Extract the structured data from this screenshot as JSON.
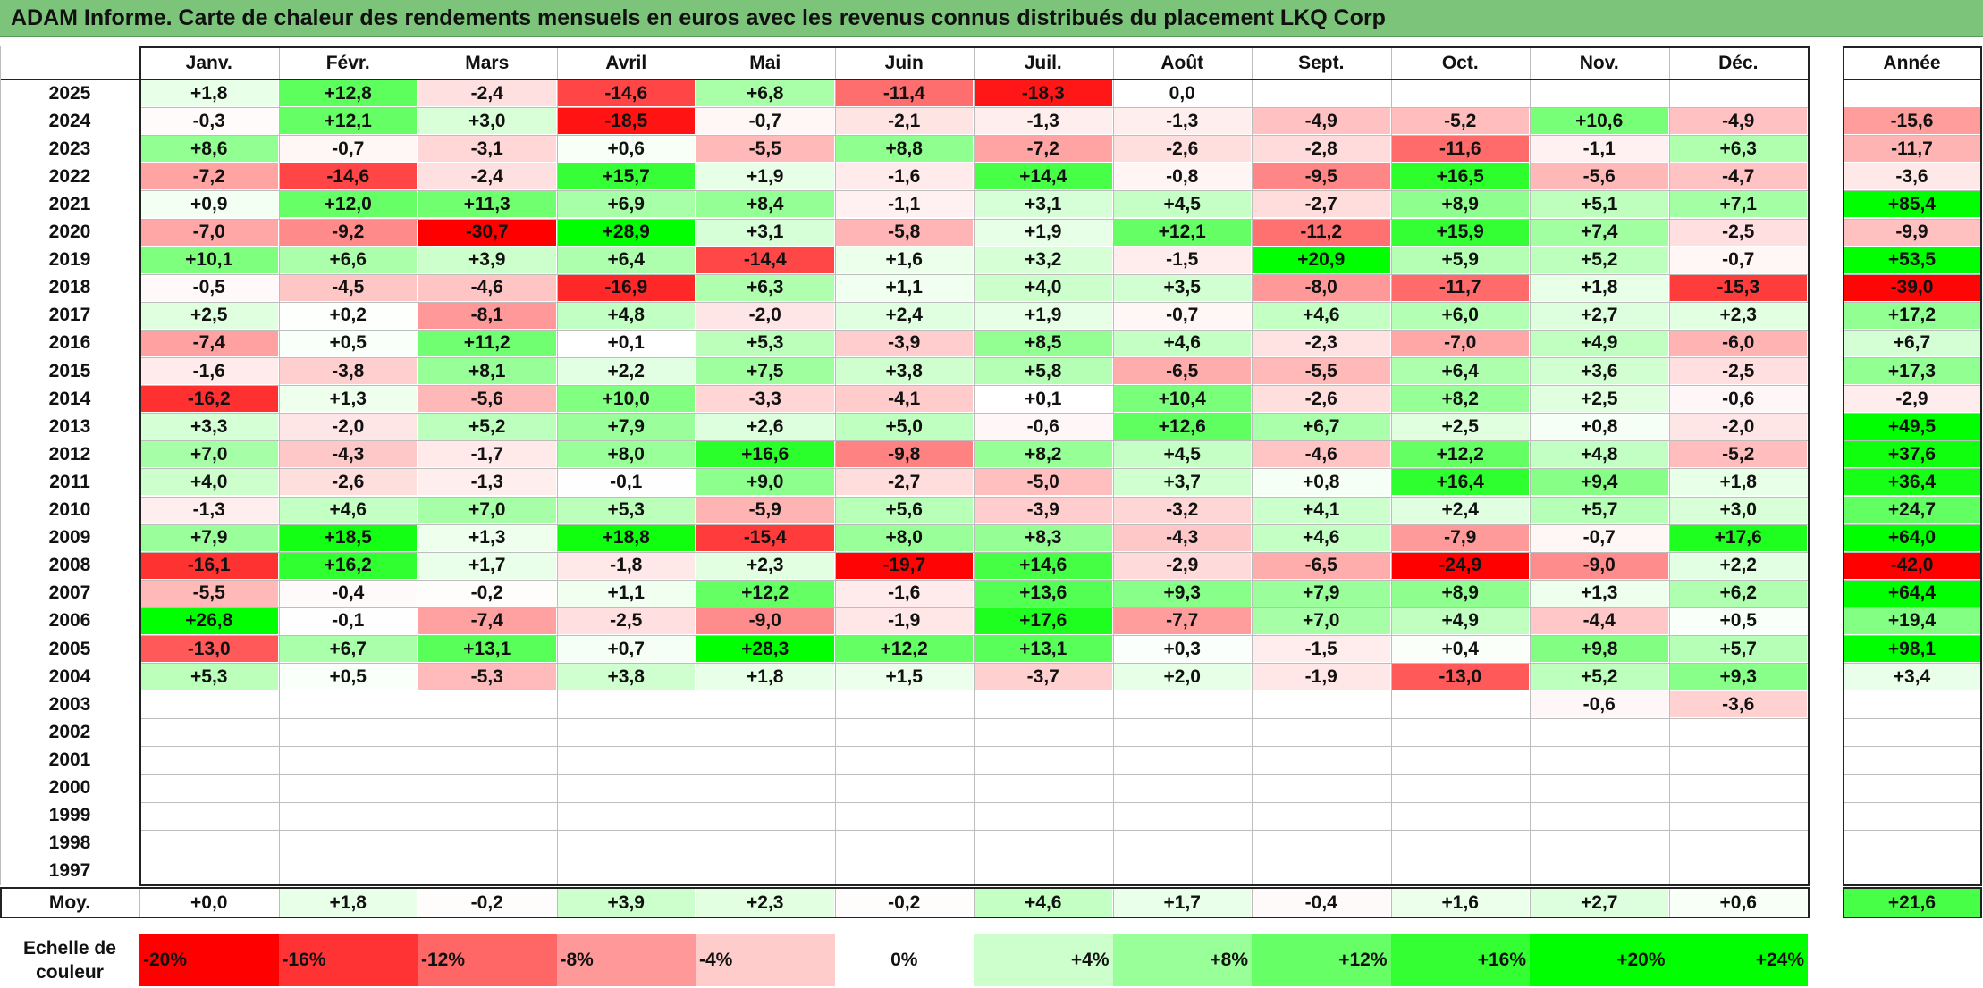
{
  "title": "ADAM Informe. Carte de chaleur des rendements mensuels en euros avec les revenus connus distribués du placement LKQ Corp",
  "chart_data": {
    "type": "heatmap",
    "title": "ADAM Informe. Carte de chaleur des rendements mensuels en euros avec les revenus connus distribués du placement LKQ Corp",
    "months": [
      "Janv.",
      "Févr.",
      "Mars",
      "Avril",
      "Mai",
      "Juin",
      "Juil.",
      "Août",
      "Sept.",
      "Oct.",
      "Nov.",
      "Déc."
    ],
    "year_header": "Année",
    "years": [
      "2025",
      "2024",
      "2023",
      "2022",
      "2021",
      "2020",
      "2019",
      "2018",
      "2017",
      "2016",
      "2015",
      "2014",
      "2013",
      "2012",
      "2011",
      "2010",
      "2009",
      "2008",
      "2007",
      "2006",
      "2005",
      "2004",
      "2003",
      "2002",
      "2001",
      "2000",
      "1999",
      "1998",
      "1997"
    ],
    "values": [
      [
        "+1,8",
        "+12,8",
        "-2,4",
        "-14,6",
        "+6,8",
        "-11,4",
        "-18,3",
        "0,0",
        "",
        "",
        "",
        ""
      ],
      [
        "-0,3",
        "+12,1",
        "+3,0",
        "-18,5",
        "-0,7",
        "-2,1",
        "-1,3",
        "-1,3",
        "-4,9",
        "-5,2",
        "+10,6",
        "-4,9"
      ],
      [
        "+8,6",
        "-0,7",
        "-3,1",
        "+0,6",
        "-5,5",
        "+8,8",
        "-7,2",
        "-2,6",
        "-2,8",
        "-11,6",
        "-1,1",
        "+6,3"
      ],
      [
        "-7,2",
        "-14,6",
        "-2,4",
        "+15,7",
        "+1,9",
        "-1,6",
        "+14,4",
        "-0,8",
        "-9,5",
        "+16,5",
        "-5,6",
        "-4,7"
      ],
      [
        "+0,9",
        "+12,0",
        "+11,3",
        "+6,9",
        "+8,4",
        "-1,1",
        "+3,1",
        "+4,5",
        "-2,7",
        "+8,9",
        "+5,1",
        "+7,1"
      ],
      [
        "-7,0",
        "-9,2",
        "-30,7",
        "+28,9",
        "+3,1",
        "-5,8",
        "+1,9",
        "+12,1",
        "-11,2",
        "+15,9",
        "+7,4",
        "-2,5"
      ],
      [
        "+10,1",
        "+6,6",
        "+3,9",
        "+6,4",
        "-14,4",
        "+1,6",
        "+3,2",
        "-1,5",
        "+20,9",
        "+5,9",
        "+5,2",
        "-0,7"
      ],
      [
        "-0,5",
        "-4,5",
        "-4,6",
        "-16,9",
        "+6,3",
        "+1,1",
        "+4,0",
        "+3,5",
        "-8,0",
        "-11,7",
        "+1,8",
        "-15,3"
      ],
      [
        "+2,5",
        "+0,2",
        "-8,1",
        "+4,8",
        "-2,0",
        "+2,4",
        "+1,9",
        "-0,7",
        "+4,6",
        "+6,0",
        "+2,7",
        "+2,3"
      ],
      [
        "-7,4",
        "+0,5",
        "+11,2",
        "+0,1",
        "+5,3",
        "-3,9",
        "+8,5",
        "+4,6",
        "-2,3",
        "-7,0",
        "+4,9",
        "-6,0"
      ],
      [
        "-1,6",
        "-3,8",
        "+8,1",
        "+2,2",
        "+7,5",
        "+3,8",
        "+5,8",
        "-6,5",
        "-5,5",
        "+6,4",
        "+3,6",
        "-2,5"
      ],
      [
        "-16,2",
        "+1,3",
        "-5,6",
        "+10,0",
        "-3,3",
        "-4,1",
        "+0,1",
        "+10,4",
        "-2,6",
        "+8,2",
        "+2,5",
        "-0,6"
      ],
      [
        "+3,3",
        "-2,0",
        "+5,2",
        "+7,9",
        "+2,6",
        "+5,0",
        "-0,6",
        "+12,6",
        "+6,7",
        "+2,5",
        "+0,8",
        "-2,0"
      ],
      [
        "+7,0",
        "-4,3",
        "-1,7",
        "+8,0",
        "+16,6",
        "-9,8",
        "+8,2",
        "+4,5",
        "-4,6",
        "+12,2",
        "+4,8",
        "-5,2"
      ],
      [
        "+4,0",
        "-2,6",
        "-1,3",
        "-0,1",
        "+9,0",
        "-2,7",
        "-5,0",
        "+3,7",
        "+0,8",
        "+16,4",
        "+9,4",
        "+1,8"
      ],
      [
        "-1,3",
        "+4,6",
        "+7,0",
        "+5,3",
        "-5,9",
        "+5,6",
        "-3,9",
        "-3,2",
        "+4,1",
        "+2,4",
        "+5,7",
        "+3,0"
      ],
      [
        "+7,9",
        "+18,5",
        "+1,3",
        "+18,8",
        "-15,4",
        "+8,0",
        "+8,3",
        "-4,3",
        "+4,6",
        "-7,9",
        "-0,7",
        "+17,6"
      ],
      [
        "-16,1",
        "+16,2",
        "+1,7",
        "-1,8",
        "+2,3",
        "-19,7",
        "+14,6",
        "-2,9",
        "-6,5",
        "-24,9",
        "-9,0",
        "+2,2"
      ],
      [
        "-5,5",
        "-0,4",
        "-0,2",
        "+1,1",
        "+12,2",
        "-1,6",
        "+13,6",
        "+9,3",
        "+7,9",
        "+8,9",
        "+1,3",
        "+6,2"
      ],
      [
        "+26,8",
        "-0,1",
        "-7,4",
        "-2,5",
        "-9,0",
        "-1,9",
        "+17,6",
        "-7,7",
        "+7,0",
        "+4,9",
        "-4,4",
        "+0,5"
      ],
      [
        "-13,0",
        "+6,7",
        "+13,1",
        "+0,7",
        "+28,3",
        "+12,2",
        "+13,1",
        "+0,3",
        "-1,5",
        "+0,4",
        "+9,8",
        "+5,7"
      ],
      [
        "+5,3",
        "+0,5",
        "-5,3",
        "+3,8",
        "+1,8",
        "+1,5",
        "-3,7",
        "+2,0",
        "-1,9",
        "-13,0",
        "+5,2",
        "+9,3"
      ],
      [
        "",
        "",
        "",
        "",
        "",
        "",
        "",
        "",
        "",
        "",
        "-0,6",
        "-3,6"
      ],
      [
        "",
        "",
        "",
        "",
        "",
        "",
        "",
        "",
        "",
        "",
        "",
        ""
      ],
      [
        "",
        "",
        "",
        "",
        "",
        "",
        "",
        "",
        "",
        "",
        "",
        ""
      ],
      [
        "",
        "",
        "",
        "",
        "",
        "",
        "",
        "",
        "",
        "",
        "",
        ""
      ],
      [
        "",
        "",
        "",
        "",
        "",
        "",
        "",
        "",
        "",
        "",
        "",
        ""
      ],
      [
        "",
        "",
        "",
        "",
        "",
        "",
        "",
        "",
        "",
        "",
        "",
        ""
      ],
      [
        "",
        "",
        "",
        "",
        "",
        "",
        "",
        "",
        "",
        "",
        "",
        ""
      ]
    ],
    "annual": [
      "",
      "-15,6",
      "-11,7",
      "-3,6",
      "+85,4",
      "-9,9",
      "+53,5",
      "-39,0",
      "+17,2",
      "+6,7",
      "+17,3",
      "-2,9",
      "+49,5",
      "+37,6",
      "+36,4",
      "+24,7",
      "+64,0",
      "-42,0",
      "+64,4",
      "+19,4",
      "+98,1",
      "+3,4",
      "",
      "",
      "",
      "",
      "",
      "",
      ""
    ],
    "average_label": "Moy.",
    "average_values": [
      "+0,0",
      "+1,8",
      "-0,2",
      "+3,9",
      "+2,3",
      "-0,2",
      "+4,6",
      "+1,7",
      "-0,4",
      "+1,6",
      "+2,7",
      "+0,6"
    ],
    "average_annual": "+21,6",
    "scale_label": "Echelle de couleur",
    "scale": [
      "-20%",
      "-16%",
      "-12%",
      "-8%",
      "-4%",
      "0%",
      "+4%",
      "+8%",
      "+12%",
      "+16%",
      "+20%",
      "+24%"
    ],
    "scale_values": [
      -20,
      -16,
      -12,
      -8,
      -4,
      0,
      4,
      8,
      12,
      16,
      20,
      24
    ],
    "colors": {
      "positive": "#00ff00",
      "negative": "#ff0000",
      "neutral": "#ffffff"
    }
  }
}
